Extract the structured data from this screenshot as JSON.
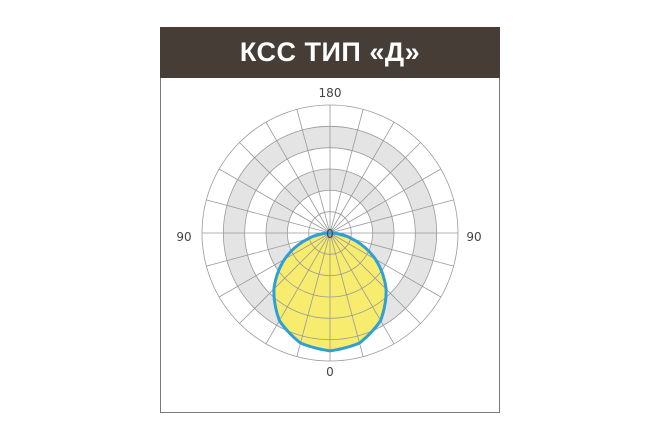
{
  "header": {
    "title": "КСС ТИП «Д»"
  },
  "diagram": {
    "labels": {
      "top": "180",
      "left": "90",
      "right": "90",
      "bottom": "0",
      "center": "0"
    },
    "colors": {
      "fill": "#f7ec6e",
      "outline": "#2fa0d6",
      "grid": "#9a9a9a",
      "band": "#e4e4e4",
      "header": "#453d36"
    },
    "spoke_step_deg": 15,
    "ring_count": 6,
    "curve": {
      "angles_deg": [
        0,
        15,
        30,
        45,
        60,
        75,
        90
      ],
      "relative_intensity": [
        0.92,
        0.89,
        0.79,
        0.62,
        0.41,
        0.18,
        0.0
      ]
    }
  }
}
